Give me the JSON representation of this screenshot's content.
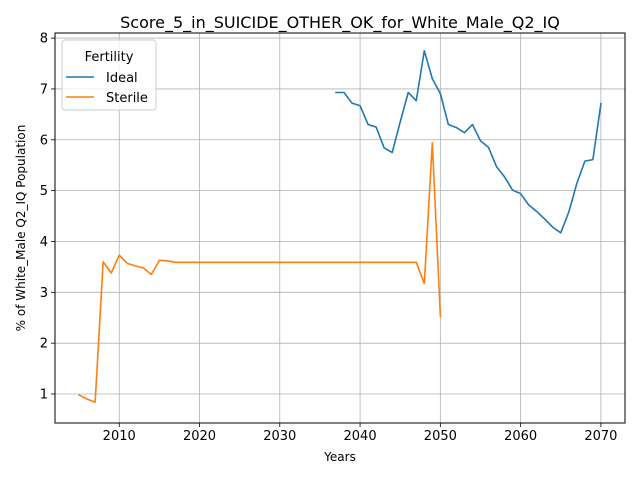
{
  "chart_data": {
    "type": "line",
    "title": "Score_5_in_SUICIDE_OTHER_OK_for_White_Male_Q2_IQ",
    "xlabel": "Years",
    "ylabel": "% of White_Male Q2_IQ Population",
    "xlim": [
      2002,
      2073
    ],
    "ylim": [
      0.43,
      8.1
    ],
    "xticks": [
      2010,
      2020,
      2030,
      2040,
      2050,
      2060,
      2070
    ],
    "yticks": [
      1,
      2,
      3,
      4,
      5,
      6,
      7,
      8
    ],
    "grid": true,
    "legend": {
      "title": "Fertility",
      "placement": "top-left"
    },
    "series": [
      {
        "name": "Ideal",
        "color": "#1f77b4",
        "x": [
          2037,
          2038,
          2039,
          2040,
          2041,
          2042,
          2043,
          2044,
          2045,
          2046,
          2047,
          2048,
          2049,
          2050,
          2051,
          2052,
          2053,
          2054,
          2055,
          2056,
          2057,
          2058,
          2059,
          2060,
          2061,
          2062,
          2063,
          2064,
          2065,
          2066,
          2067,
          2068,
          2069,
          2070
        ],
        "y": [
          6.93,
          6.93,
          6.72,
          6.67,
          6.3,
          6.25,
          5.84,
          5.75,
          6.35,
          6.93,
          6.77,
          7.75,
          7.2,
          6.91,
          6.3,
          6.24,
          6.14,
          6.3,
          5.98,
          5.85,
          5.47,
          5.27,
          5.01,
          4.94,
          4.72,
          4.59,
          4.44,
          4.28,
          4.17,
          4.58,
          5.14,
          5.58,
          5.61,
          6.71
        ]
      },
      {
        "name": "Sterile",
        "color": "#ff7f0e",
        "x": [
          2005,
          2006,
          2007,
          2008,
          2009,
          2010,
          2011,
          2012,
          2013,
          2014,
          2015,
          2016,
          2017,
          2018,
          2019,
          2020,
          2025,
          2030,
          2035,
          2040,
          2045,
          2046,
          2047,
          2048,
          2049,
          2050
        ],
        "y": [
          0.98,
          0.9,
          0.84,
          3.6,
          3.38,
          3.73,
          3.57,
          3.52,
          3.48,
          3.35,
          3.63,
          3.62,
          3.59,
          3.59,
          3.59,
          3.59,
          3.59,
          3.59,
          3.59,
          3.59,
          3.59,
          3.59,
          3.59,
          3.17,
          5.94,
          2.53
        ]
      }
    ]
  }
}
